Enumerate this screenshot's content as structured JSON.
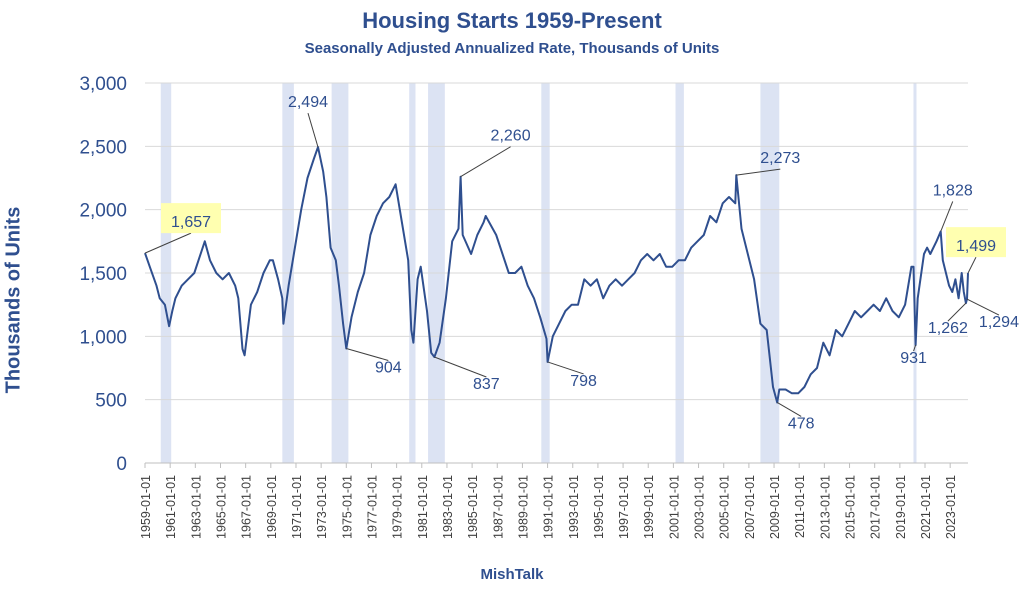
{
  "chart_data": {
    "type": "line",
    "title": "Housing Starts 1959-Present",
    "subtitle": "Seasonally Adjusted Annualized Rate, Thousands of Units",
    "ylabel": "Thousands of Units",
    "xlabel": "MishTalk",
    "ylim": [
      0,
      3000
    ],
    "xlim": [
      "1959-01-01",
      "2024-06-01"
    ],
    "yticks": [
      0,
      500,
      1000,
      1500,
      2000,
      2500,
      3000
    ],
    "ytick_labels": [
      "0",
      "500",
      "1,000",
      "1,500",
      "2,000",
      "2,500",
      "3,000"
    ],
    "xtick_labels": [
      "1959-01-01",
      "1961-01-01",
      "1963-01-01",
      "1965-01-01",
      "1967-01-01",
      "1969-01-01",
      "1971-01-01",
      "1973-01-01",
      "1975-01-01",
      "1977-01-01",
      "1979-01-01",
      "1981-01-01",
      "1983-01-01",
      "1985-01-01",
      "1987-01-01",
      "1989-01-01",
      "1991-01-01",
      "1993-01-01",
      "1995-01-01",
      "1997-01-01",
      "1999-01-01",
      "2001-01-01",
      "2003-01-01",
      "2005-01-01",
      "2007-01-01",
      "2009-01-01",
      "2011-01-01",
      "2013-01-01",
      "2015-01-01",
      "2017-01-01",
      "2019-01-01",
      "2021-01-01",
      "2023-01-01"
    ],
    "recessions": [
      [
        "1960-04",
        "1961-02"
      ],
      [
        "1969-12",
        "1970-11"
      ],
      [
        "1973-11",
        "1975-03"
      ],
      [
        "1980-01",
        "1980-07"
      ],
      [
        "1981-07",
        "1982-11"
      ],
      [
        "1990-07",
        "1991-03"
      ],
      [
        "2001-03",
        "2001-11"
      ],
      [
        "2007-12",
        "2009-06"
      ],
      [
        "2020-02",
        "2020-04"
      ]
    ],
    "series": [
      {
        "values": [
          [
            "1959-01",
            1657
          ],
          [
            "1959-06",
            1540
          ],
          [
            "1959-12",
            1400
          ],
          [
            "1960-03",
            1300
          ],
          [
            "1960-08",
            1250
          ],
          [
            "1960-12",
            1080
          ],
          [
            "1961-03",
            1200
          ],
          [
            "1961-06",
            1300
          ],
          [
            "1961-12",
            1400
          ],
          [
            "1962-06",
            1450
          ],
          [
            "1962-12",
            1500
          ],
          [
            "1963-04",
            1600
          ],
          [
            "1963-10",
            1750
          ],
          [
            "1964-03",
            1600
          ],
          [
            "1964-09",
            1500
          ],
          [
            "1965-03",
            1450
          ],
          [
            "1965-09",
            1500
          ],
          [
            "1966-03",
            1400
          ],
          [
            "1966-06",
            1300
          ],
          [
            "1966-10",
            900
          ],
          [
            "1966-12",
            850
          ],
          [
            "1967-06",
            1250
          ],
          [
            "1967-12",
            1350
          ],
          [
            "1968-06",
            1500
          ],
          [
            "1968-12",
            1600
          ],
          [
            "1969-03",
            1600
          ],
          [
            "1969-08",
            1450
          ],
          [
            "1969-12",
            1300
          ],
          [
            "1970-01",
            1100
          ],
          [
            "1970-06",
            1400
          ],
          [
            "1970-12",
            1700
          ],
          [
            "1971-06",
            2000
          ],
          [
            "1971-12",
            2250
          ],
          [
            "1972-06",
            2400
          ],
          [
            "1972-10",
            2494
          ],
          [
            "1973-03",
            2300
          ],
          [
            "1973-06",
            2100
          ],
          [
            "1973-10",
            1700
          ],
          [
            "1974-03",
            1600
          ],
          [
            "1974-06",
            1400
          ],
          [
            "1974-10",
            1100
          ],
          [
            "1975-01",
            904
          ],
          [
            "1975-06",
            1150
          ],
          [
            "1975-12",
            1350
          ],
          [
            "1976-06",
            1500
          ],
          [
            "1976-12",
            1800
          ],
          [
            "1977-06",
            1950
          ],
          [
            "1977-12",
            2050
          ],
          [
            "1978-06",
            2100
          ],
          [
            "1978-12",
            2200
          ],
          [
            "1979-06",
            1900
          ],
          [
            "1979-12",
            1600
          ],
          [
            "1980-03",
            1050
          ],
          [
            "1980-05",
            950
          ],
          [
            "1980-09",
            1450
          ],
          [
            "1980-12",
            1550
          ],
          [
            "1981-06",
            1200
          ],
          [
            "1981-10",
            870
          ],
          [
            "1982-01",
            837
          ],
          [
            "1982-06",
            950
          ],
          [
            "1982-12",
            1300
          ],
          [
            "1983-06",
            1750
          ],
          [
            "1983-12",
            1850
          ],
          [
            "1984-02",
            2260
          ],
          [
            "1984-04",
            1800
          ],
          [
            "1984-12",
            1650
          ],
          [
            "1985-06",
            1800
          ],
          [
            "1985-12",
            1900
          ],
          [
            "1986-02",
            1950
          ],
          [
            "1986-12",
            1800
          ],
          [
            "1987-06",
            1650
          ],
          [
            "1987-12",
            1500
          ],
          [
            "1988-06",
            1500
          ],
          [
            "1988-12",
            1550
          ],
          [
            "1989-06",
            1400
          ],
          [
            "1989-12",
            1300
          ],
          [
            "1990-06",
            1150
          ],
          [
            "1990-12",
            980
          ],
          [
            "1991-01",
            798
          ],
          [
            "1991-06",
            1000
          ],
          [
            "1991-12",
            1100
          ],
          [
            "1992-06",
            1200
          ],
          [
            "1992-12",
            1250
          ],
          [
            "1993-06",
            1250
          ],
          [
            "1993-12",
            1450
          ],
          [
            "1994-06",
            1400
          ],
          [
            "1994-12",
            1450
          ],
          [
            "1995-06",
            1300
          ],
          [
            "1995-12",
            1400
          ],
          [
            "1996-06",
            1450
          ],
          [
            "1996-12",
            1400
          ],
          [
            "1997-06",
            1450
          ],
          [
            "1997-12",
            1500
          ],
          [
            "1998-06",
            1600
          ],
          [
            "1998-12",
            1650
          ],
          [
            "1999-06",
            1600
          ],
          [
            "1999-12",
            1650
          ],
          [
            "2000-06",
            1550
          ],
          [
            "2000-12",
            1550
          ],
          [
            "2001-06",
            1600
          ],
          [
            "2001-12",
            1600
          ],
          [
            "2002-06",
            1700
          ],
          [
            "2002-12",
            1750
          ],
          [
            "2003-06",
            1800
          ],
          [
            "2003-12",
            1950
          ],
          [
            "2004-06",
            1900
          ],
          [
            "2004-12",
            2050
          ],
          [
            "2005-06",
            2100
          ],
          [
            "2005-12",
            2050
          ],
          [
            "2006-01",
            2273
          ],
          [
            "2006-06",
            1850
          ],
          [
            "2006-12",
            1650
          ],
          [
            "2007-06",
            1450
          ],
          [
            "2007-12",
            1100
          ],
          [
            "2008-06",
            1050
          ],
          [
            "2008-12",
            600
          ],
          [
            "2009-04",
            478
          ],
          [
            "2009-06",
            580
          ],
          [
            "2009-12",
            580
          ],
          [
            "2010-06",
            550
          ],
          [
            "2010-12",
            550
          ],
          [
            "2011-06",
            600
          ],
          [
            "2011-12",
            700
          ],
          [
            "2012-06",
            750
          ],
          [
            "2012-12",
            950
          ],
          [
            "2013-06",
            850
          ],
          [
            "2013-12",
            1050
          ],
          [
            "2014-06",
            1000
          ],
          [
            "2014-12",
            1100
          ],
          [
            "2015-06",
            1200
          ],
          [
            "2015-12",
            1150
          ],
          [
            "2016-06",
            1200
          ],
          [
            "2016-12",
            1250
          ],
          [
            "2017-06",
            1200
          ],
          [
            "2017-12",
            1300
          ],
          [
            "2018-06",
            1200
          ],
          [
            "2018-12",
            1150
          ],
          [
            "2019-06",
            1250
          ],
          [
            "2019-12",
            1550
          ],
          [
            "2020-02",
            1550
          ],
          [
            "2020-04",
            931
          ],
          [
            "2020-06",
            1300
          ],
          [
            "2020-12",
            1650
          ],
          [
            "2021-03",
            1700
          ],
          [
            "2021-06",
            1650
          ],
          [
            "2021-12",
            1750
          ],
          [
            "2022-04",
            1828
          ],
          [
            "2022-06",
            1600
          ],
          [
            "2022-12",
            1400
          ],
          [
            "2023-03",
            1350
          ],
          [
            "2023-06",
            1450
          ],
          [
            "2023-09",
            1300
          ],
          [
            "2023-12",
            1500
          ],
          [
            "2024-02",
            1350
          ],
          [
            "2024-04",
            1262
          ],
          [
            "2024-05",
            1294
          ],
          [
            "2024-06",
            1499
          ]
        ]
      }
    ],
    "annotations": [
      {
        "text": "1,657",
        "x": "1959-01",
        "y": 1657,
        "highlight": true
      },
      {
        "text": "2,494",
        "x": "1972-10",
        "y": 2494
      },
      {
        "text": "904",
        "x": "1975-01",
        "y": 904
      },
      {
        "text": "837",
        "x": "1982-01",
        "y": 837
      },
      {
        "text": "2,260",
        "x": "1984-02",
        "y": 2260
      },
      {
        "text": "798",
        "x": "1991-01",
        "y": 798
      },
      {
        "text": "2,273",
        "x": "2006-01",
        "y": 2273
      },
      {
        "text": "478",
        "x": "2009-04",
        "y": 478
      },
      {
        "text": "931",
        "x": "2020-04",
        "y": 931
      },
      {
        "text": "1,828",
        "x": "2022-04",
        "y": 1828
      },
      {
        "text": "1,262",
        "x": "2024-04",
        "y": 1262
      },
      {
        "text": "1,294",
        "x": "2024-05",
        "y": 1294
      },
      {
        "text": "1,499",
        "x": "2024-06",
        "y": 1499,
        "highlight": true
      }
    ],
    "grid": true,
    "colors": {
      "line": "#2f4f8f",
      "recession": "#dce3f3",
      "grid": "#d9d9d9",
      "highlight": "#ffffb0",
      "text": "#2f4f8f"
    }
  }
}
